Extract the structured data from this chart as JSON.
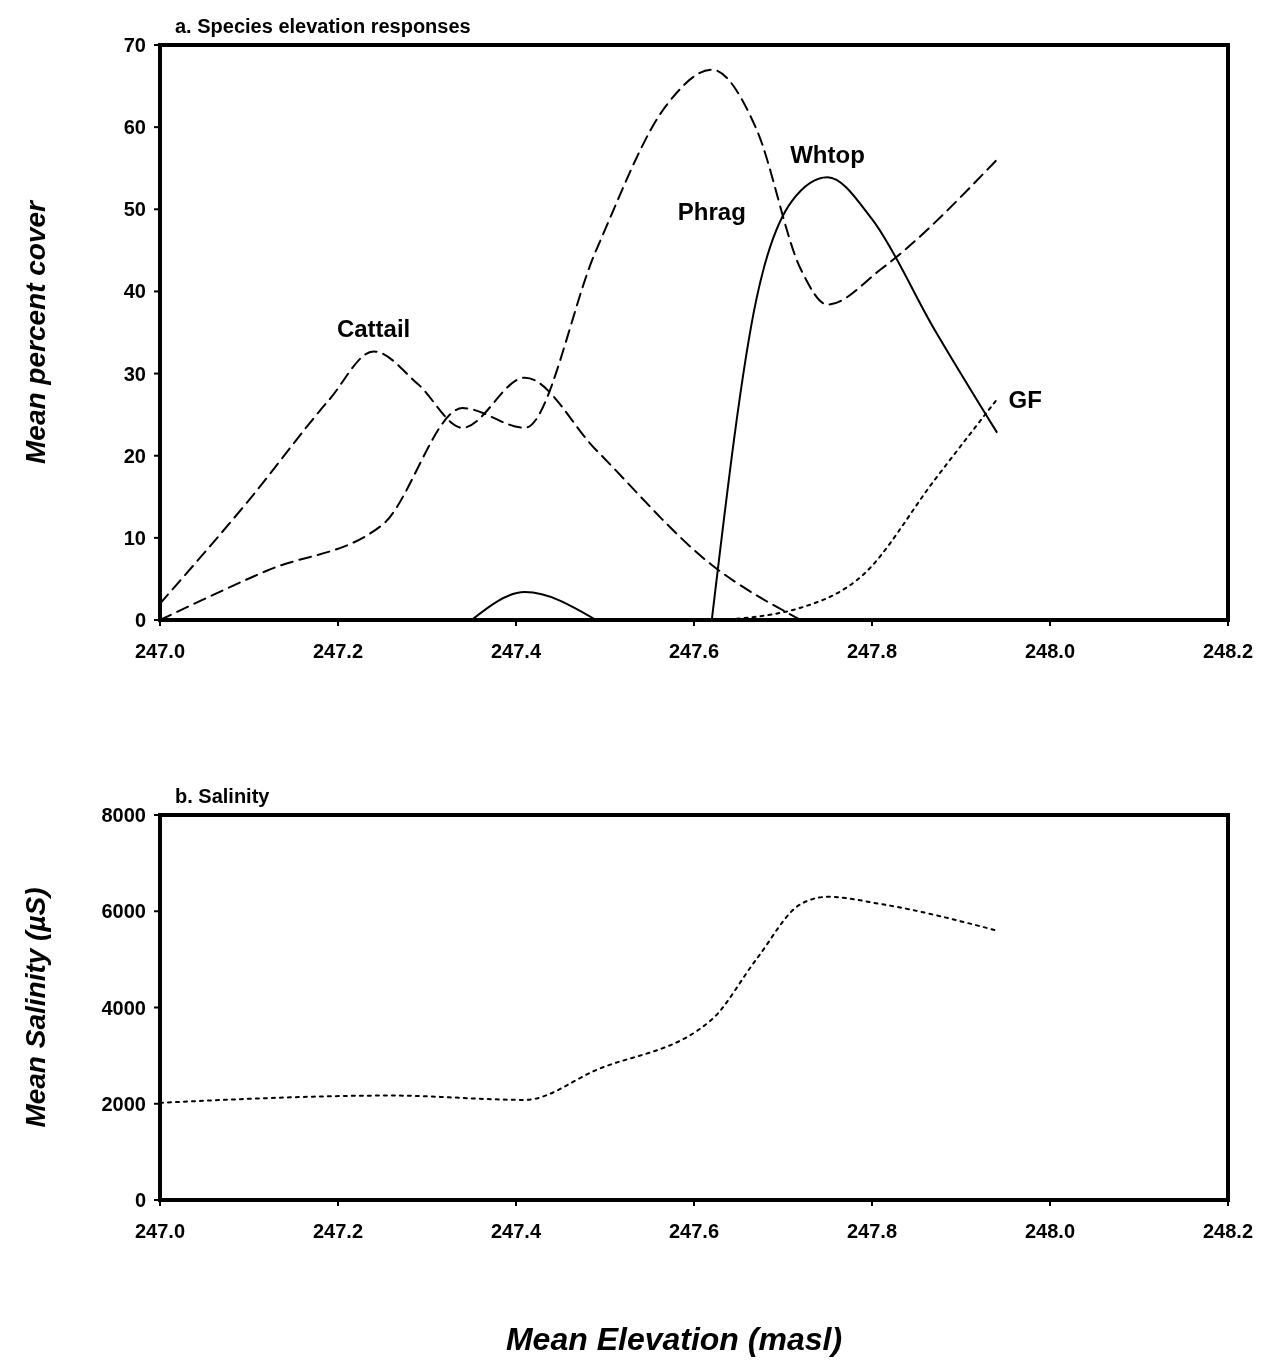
{
  "chart_data": [
    {
      "type": "line",
      "title": "a.  Species elevation responses",
      "ylabel": "Mean percent cover",
      "xlim": [
        247.0,
        248.2
      ],
      "xticks": [
        {
          "value": 247.0,
          "label": "247.0"
        },
        {
          "value": 247.2,
          "label": "247.2"
        },
        {
          "value": 247.4,
          "label": "247.4"
        },
        {
          "value": 247.6,
          "label": "247.6"
        },
        {
          "value": 247.8,
          "label": "247.8"
        },
        {
          "value": 248.0,
          "label": "248.0"
        },
        {
          "value": 248.2,
          "label": "248.2"
        }
      ],
      "ylim": [
        0,
        70
      ],
      "yticks": [
        0,
        10,
        20,
        30,
        40,
        50,
        60,
        70
      ],
      "grid": false,
      "series": [
        {
          "name": "Cattail",
          "color": "#000000",
          "line_style": "dashed",
          "x": [
            247.0,
            247.1,
            247.19,
            247.24,
            247.29,
            247.34,
            247.41,
            247.49,
            247.62,
            247.72
          ],
          "values": [
            2,
            14.6,
            26.8,
            32.7,
            28.7,
            23.4,
            29.5,
            20.7,
            6.7,
            0
          ]
        },
        {
          "name": "Phrag",
          "color": "#000000",
          "line_style": "dashed",
          "x": [
            247.0,
            247.12,
            247.25,
            247.34,
            247.41,
            247.49,
            247.57,
            247.62,
            247.67,
            247.72,
            247.75,
            247.81,
            247.94
          ],
          "values": [
            0,
            6,
            11.6,
            25.8,
            23.4,
            45,
            62.8,
            67,
            59.8,
            42.7,
            38.4,
            42.7,
            56
          ]
        },
        {
          "name": "Whtop",
          "color": "#000000",
          "line_style": "solid",
          "x": [
            247.35,
            247.41,
            247.49,
            247.55,
            247.62,
            247.67,
            247.71,
            247.75,
            247.8,
            247.87,
            247.94
          ],
          "values": [
            0,
            3.4,
            0,
            null,
            0,
            39,
            51,
            53.9,
            48.8,
            35.4,
            22.9
          ]
        },
        {
          "name": "GF",
          "color": "#000000",
          "line_style": "dotted",
          "x": [
            247.63,
            247.72,
            247.79,
            247.87,
            247.94
          ],
          "values": [
            0,
            1.5,
            5.5,
            17,
            26.8
          ]
        }
      ]
    },
    {
      "type": "line",
      "title": "b.  Salinity",
      "ylabel": "Mean Salinity (µS)",
      "xlabel": "Mean Elevation (masl)",
      "xlim": [
        247.0,
        248.2
      ],
      "xticks": [
        {
          "value": 247.0,
          "label": "247.0"
        },
        {
          "value": 247.2,
          "label": "247.2"
        },
        {
          "value": 247.4,
          "label": "247.4"
        },
        {
          "value": 247.6,
          "label": "247.6"
        },
        {
          "value": 247.8,
          "label": "247.8"
        },
        {
          "value": 248.0,
          "label": "248.0"
        },
        {
          "value": 248.2,
          "label": "248.2"
        }
      ],
      "ylim": [
        0,
        8000
      ],
      "yticks": [
        0,
        2000,
        4000,
        6000,
        8000
      ],
      "grid": false,
      "series": [
        {
          "color": "#000000",
          "line_style": "dotted",
          "x": [
            247.0,
            247.26,
            247.41,
            247.49,
            247.62,
            247.67,
            247.72,
            247.75,
            247.81,
            247.94
          ],
          "values": [
            2020,
            2170,
            2080,
            2700,
            3750,
            5000,
            6150,
            6300,
            6150,
            5600
          ]
        }
      ]
    }
  ]
}
